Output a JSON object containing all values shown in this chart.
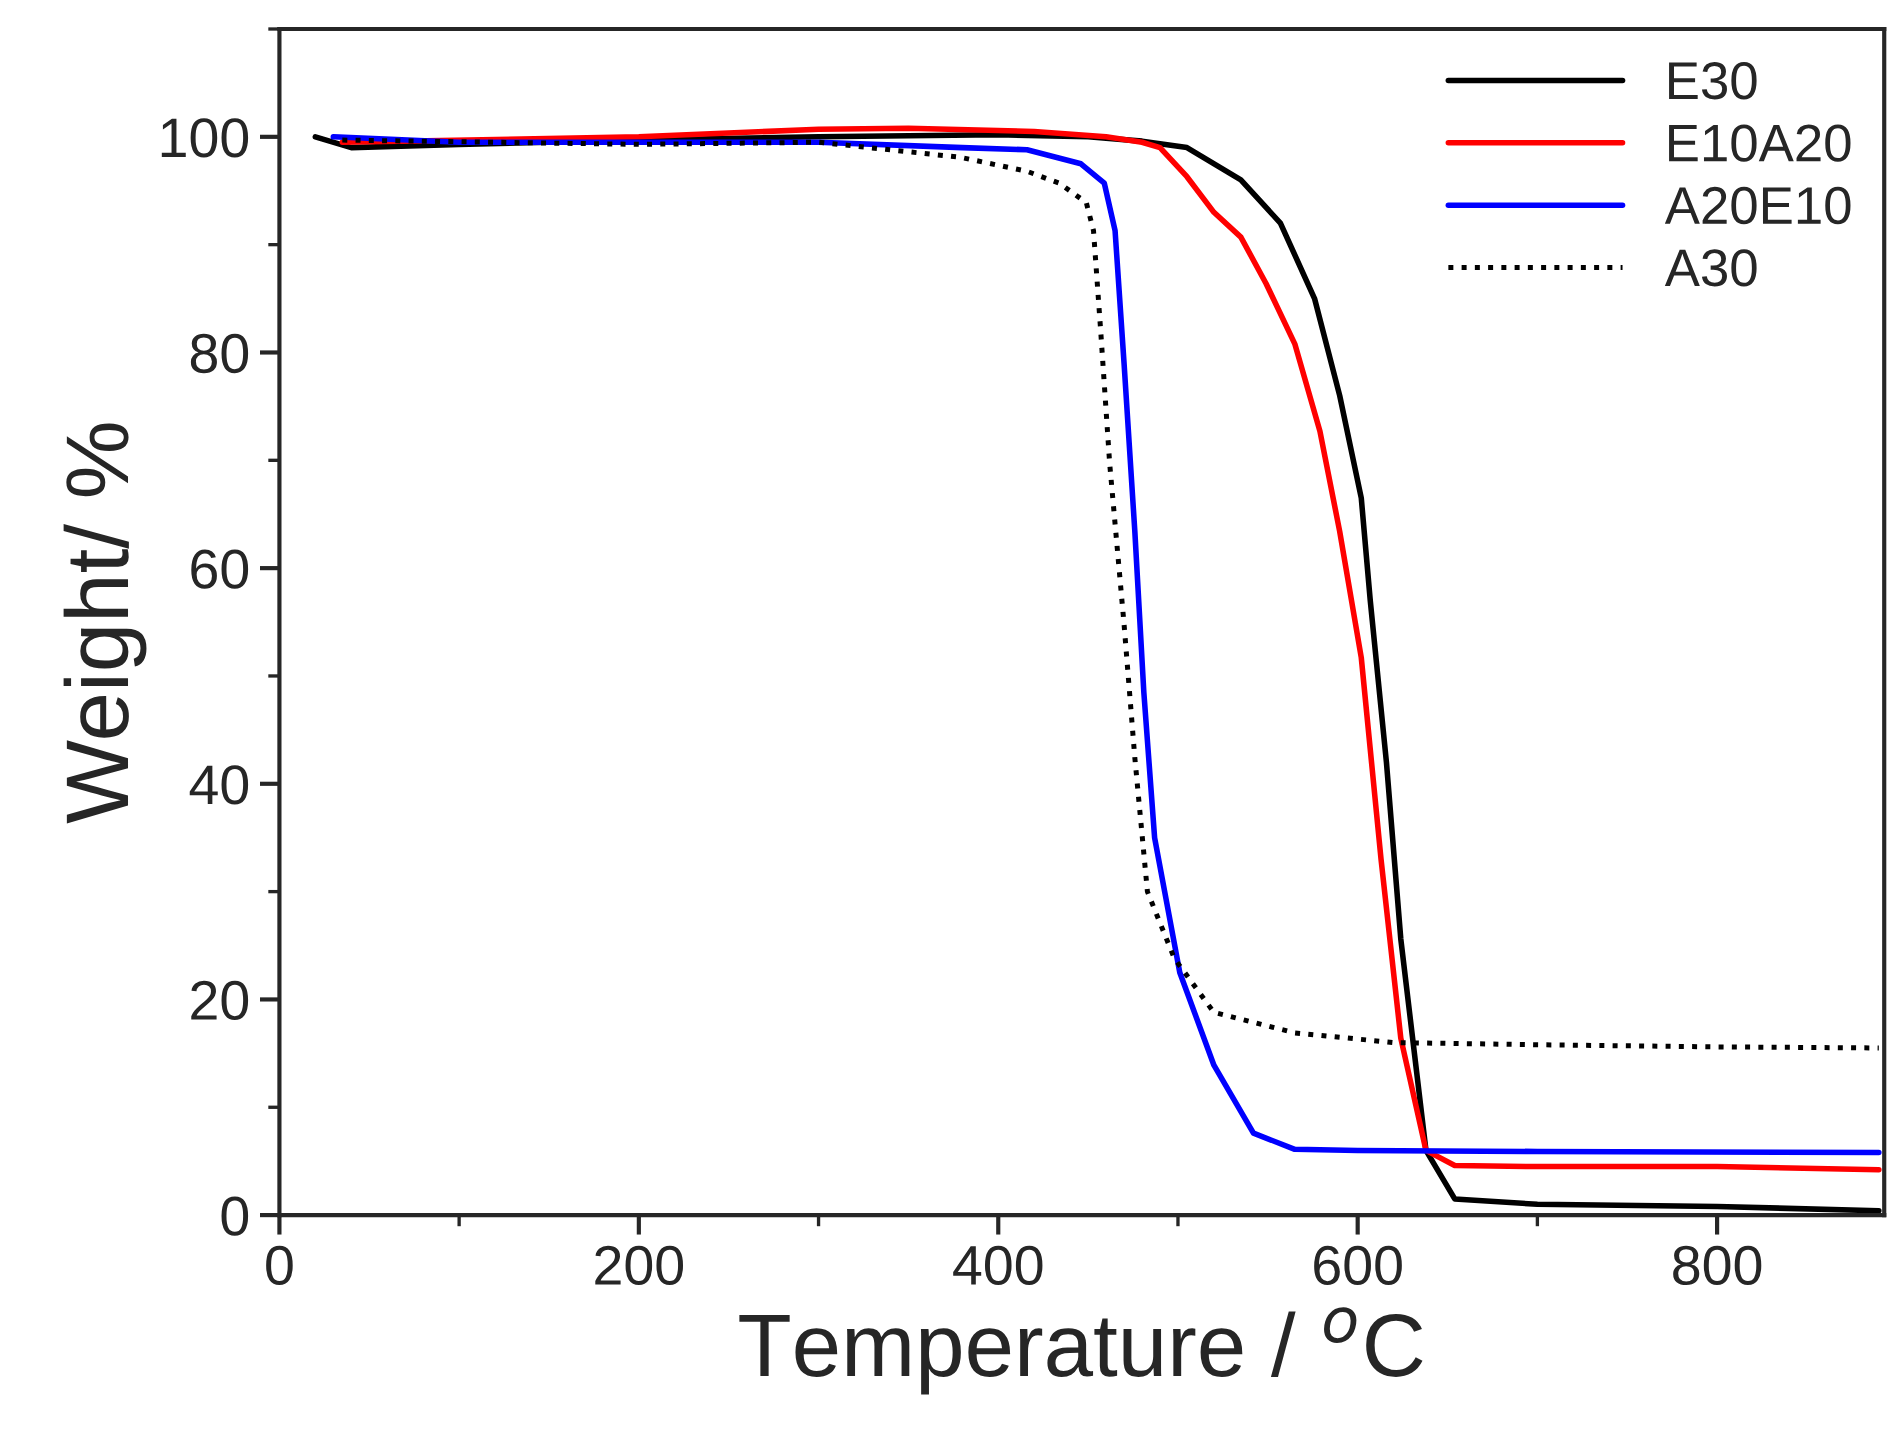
{
  "chart_data": {
    "type": "line",
    "xlabel": "Temperature / $^{o}$C",
    "ylabel": "Weight/ %",
    "xlim": [
      0,
      893
    ],
    "ylim": [
      0,
      110
    ],
    "xticks": [
      0,
      200,
      400,
      600,
      800
    ],
    "yticks": [
      0,
      20,
      40,
      60,
      80,
      100
    ],
    "grid": false,
    "legend": "top right",
    "marker": "none",
    "series": [
      {
        "name": "E30",
        "color": "#000000",
        "line_style": "solid",
        "x": [
          20,
          40,
          100,
          200,
          300,
          400,
          450,
          480,
          505,
          535,
          557,
          576,
          590,
          602,
          607,
          616,
          624,
          638,
          654,
          700,
          800,
          890
        ],
        "values": [
          100,
          99,
          99.3,
          99.7,
          100,
          100.2,
          100,
          99.6,
          99,
          96,
          92,
          85,
          76,
          66.5,
          57,
          42,
          25.6,
          6,
          1.5,
          1.0,
          0.8,
          0.4
        ]
      },
      {
        "name": "E10A20",
        "color": "#ff0000",
        "line_style": "solid",
        "x": [
          35,
          200,
          300,
          350,
          420,
          460,
          480,
          490,
          505,
          520,
          535,
          549,
          565,
          579,
          590,
          602,
          613,
          624,
          638,
          654,
          700,
          800,
          890
        ],
        "values": [
          99.5,
          100,
          100.7,
          100.8,
          100.5,
          100,
          99.5,
          99,
          96.3,
          93,
          90.7,
          86.4,
          80.8,
          72.7,
          63.4,
          51.7,
          33,
          16.4,
          6,
          4.6,
          4.5,
          4.5,
          4.2
        ]
      },
      {
        "name": "A20E10",
        "color": "#0000ff",
        "line_style": "solid",
        "x": [
          30,
          100,
          300,
          380,
          416,
          446,
          459,
          465,
          470,
          476,
          481,
          487,
          501,
          520,
          542,
          565,
          600,
          700,
          890
        ],
        "values": [
          100,
          99.5,
          99.5,
          99,
          98.8,
          97.5,
          95.7,
          91.3,
          79,
          63.4,
          48.5,
          35,
          22.5,
          13.9,
          7.6,
          6.1,
          6,
          5.9,
          5.8
        ]
      },
      {
        "name": "A30",
        "color": "#000000",
        "line_style": "dotted",
        "x": [
          35,
          200,
          300,
          379,
          416,
          434,
          449,
          453,
          457,
          462,
          470,
          476,
          483,
          498,
          520,
          565,
          620,
          700,
          800,
          890
        ],
        "values": [
          99.7,
          99.3,
          99.5,
          98.1,
          96.8,
          95.7,
          93.9,
          91.3,
          82,
          69.7,
          54.8,
          42.4,
          30,
          23.8,
          18.8,
          16.9,
          16,
          15.8,
          15.6,
          15.5
        ]
      }
    ]
  }
}
